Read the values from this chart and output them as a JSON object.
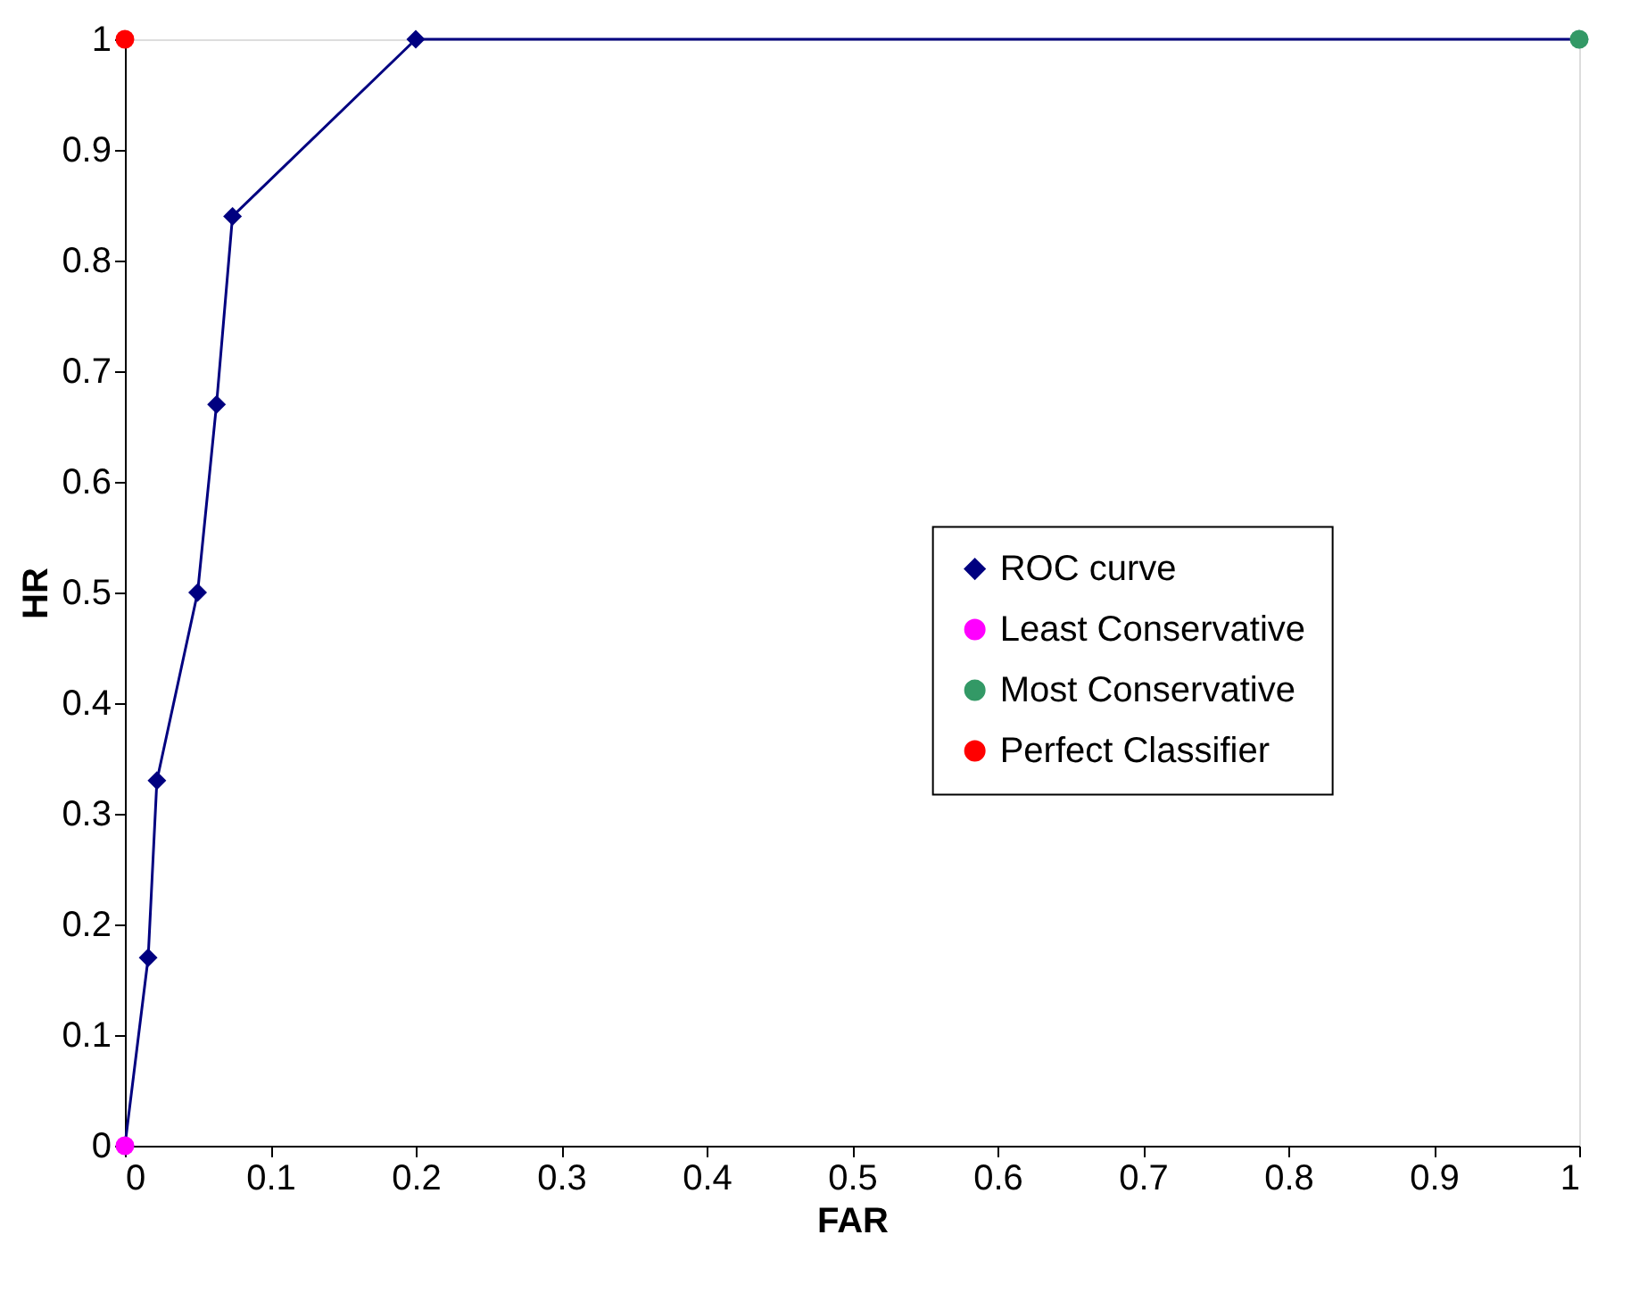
{
  "chart_data": {
    "type": "line",
    "xlabel": "FAR",
    "ylabel": "HR",
    "xlim": [
      0,
      1
    ],
    "ylim": [
      0,
      1
    ],
    "xticks": [
      0,
      0.1,
      0.2,
      0.3,
      0.4,
      0.5,
      0.6,
      0.7,
      0.8,
      0.9,
      1
    ],
    "yticks": [
      0,
      0.1,
      0.2,
      0.3,
      0.4,
      0.5,
      0.6,
      0.7,
      0.8,
      0.9,
      1
    ],
    "grid": false,
    "legend": "right",
    "series": [
      {
        "name": "ROC curve",
        "marker": "diamond",
        "color": "#000080",
        "x": [
          0,
          0.016,
          0.022,
          0.05,
          0.063,
          0.074,
          0.2,
          1
        ],
        "values": [
          0,
          0.17,
          0.33,
          0.5,
          0.67,
          0.84,
          1,
          1
        ]
      },
      {
        "name": "Least Conservative",
        "type": "scatter",
        "marker": "circle",
        "color": "#ff00ff",
        "x": [
          0
        ],
        "values": [
          0
        ]
      },
      {
        "name": "Most Conservative",
        "type": "scatter",
        "marker": "circle",
        "color": "#339966",
        "x": [
          1
        ],
        "values": [
          1
        ]
      },
      {
        "name": "Perfect Classifier",
        "type": "scatter",
        "marker": "circle",
        "color": "#ff0000",
        "x": [
          0
        ],
        "values": [
          1
        ]
      }
    ]
  }
}
